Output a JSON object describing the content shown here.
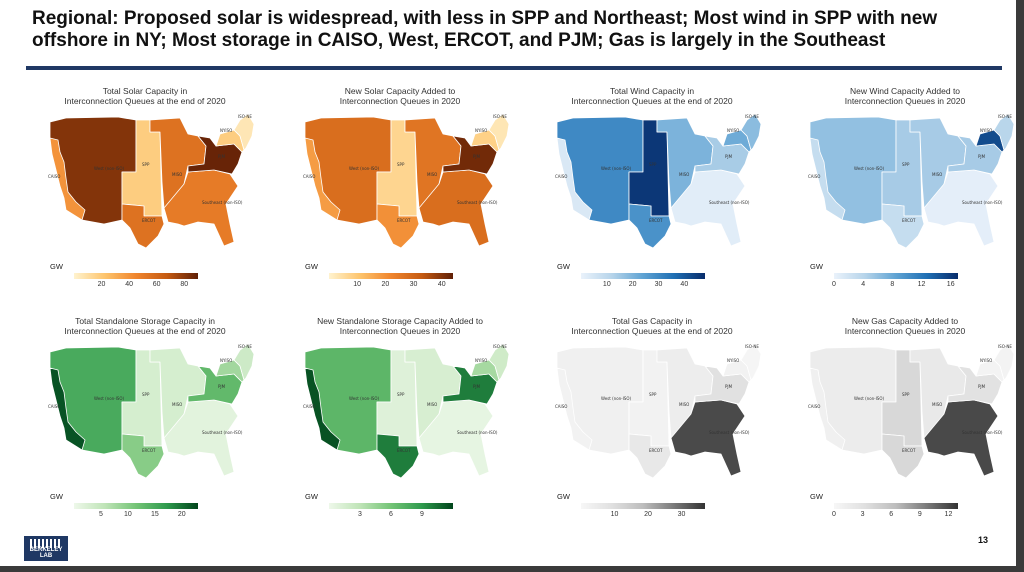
{
  "slide": {
    "title": "Regional: Proposed solar is widespread, with less in SPP and Northeast; Most wind in SPP with new offshore in NY; Most storage in CAISO, West, ERCOT, and PJM; Gas is largely in the Southeast",
    "page_number": "13",
    "logo_text": "BERKELEY LAB"
  },
  "maps": [
    {
      "title_line1": "Total Solar Capacity in",
      "title_line2": "Interconnection Queues at the end of 2020",
      "unit": "GW",
      "ramp": [
        "#fff3cf",
        "#fdc46c",
        "#f0852d",
        "#c55a11",
        "#5f1f06"
      ],
      "vmax": 90,
      "ticks": [
        "20",
        "40",
        "60",
        "80"
      ],
      "tick_values": [
        20,
        40,
        60,
        80
      ],
      "region_values": {
        "west": 82,
        "caiso": 40,
        "spp": 18,
        "miso": 55,
        "ercot": 55,
        "southeast": 50,
        "pjm": 88,
        "nyiso": 18,
        "isone": 6
      }
    },
    {
      "title_line1": "New Solar Capacity Added to",
      "title_line2": "Interconnection Queues in 2020",
      "unit": "GW",
      "ramp": [
        "#fff3cf",
        "#fdc46c",
        "#f0852d",
        "#c55a11",
        "#5f1f06"
      ],
      "vmax": 44,
      "ticks": [
        "10",
        "20",
        "30",
        "40"
      ],
      "tick_values": [
        10,
        20,
        30,
        40
      ],
      "region_values": {
        "west": 28,
        "caiso": 18,
        "spp": 7,
        "miso": 26,
        "ercot": 20,
        "southeast": 28,
        "pjm": 42,
        "nyiso": 8,
        "isone": 3
      }
    },
    {
      "title_line1": "Total Wind Capacity in",
      "title_line2": "Interconnection Queues at the end of 2020",
      "unit": "GW",
      "ramp": [
        "#eaf2fb",
        "#b6d4ea",
        "#5fa3d3",
        "#1f6fb4",
        "#082c6b"
      ],
      "vmax": 48,
      "ticks": [
        "10",
        "20",
        "30",
        "40"
      ],
      "tick_values": [
        10,
        20,
        30,
        40
      ],
      "region_values": {
        "west": 30,
        "caiso": 4,
        "spp": 46,
        "miso": 20,
        "ercot": 28,
        "southeast": 2,
        "pjm": 14,
        "nyiso": 22,
        "isone": 18
      }
    },
    {
      "title_line1": "New Wind Capacity Added to",
      "title_line2": "Interconnection Queues in 2020",
      "unit": "GW",
      "ramp": [
        "#eaf2fb",
        "#b6d4ea",
        "#5fa3d3",
        "#1f6fb4",
        "#082c6b"
      ],
      "vmax": 17,
      "ticks": [
        "0",
        "4",
        "8",
        "12",
        "16"
      ],
      "tick_values": [
        0,
        4,
        8,
        12,
        16
      ],
      "region_values": {
        "west": 6,
        "caiso": 3,
        "spp": 5,
        "miso": 5,
        "ercot": 3,
        "southeast": 0.5,
        "pjm": 5,
        "nyiso": 15,
        "isone": 4
      }
    },
    {
      "title_line1": "Total Standalone Storage Capacity in",
      "title_line2": "Interconnection Queues at the end of 2020",
      "unit": "GW",
      "ramp": [
        "#eef8ea",
        "#bfe4b7",
        "#74c476",
        "#2e9a4d",
        "#00441b"
      ],
      "vmax": 23,
      "ticks": [
        "5",
        "10",
        "15",
        "20"
      ],
      "tick_values": [
        5,
        10,
        15,
        20
      ],
      "region_values": {
        "west": 15,
        "caiso": 22,
        "spp": 3,
        "miso": 3,
        "ercot": 10,
        "southeast": 1.5,
        "pjm": 13,
        "nyiso": 8,
        "isone": 4
      }
    },
    {
      "title_line1": "New Standalone Storage Capacity Added to",
      "title_line2": "Interconnection Queues in 2020",
      "unit": "GW",
      "ramp": [
        "#eef8ea",
        "#bfe4b7",
        "#74c476",
        "#2e9a4d",
        "#00441b"
      ],
      "vmax": 12,
      "ticks": [
        "3",
        "6",
        "9"
      ],
      "tick_values": [
        3,
        6,
        9
      ],
      "region_values": {
        "west": 7,
        "caiso": 11.5,
        "spp": 1,
        "miso": 1.5,
        "ercot": 10,
        "southeast": 0.5,
        "pjm": 10,
        "nyiso": 4,
        "isone": 2
      }
    },
    {
      "title_line1": "Total Gas Capacity in",
      "title_line2": "Interconnection Queues at the end of 2020",
      "unit": "GW",
      "ramp": [
        "#f7f7f7",
        "#e0e0e0",
        "#bdbdbd",
        "#7a7a7a",
        "#333333"
      ],
      "vmax": 37,
      "ticks": [
        "10",
        "20",
        "30"
      ],
      "tick_values": [
        10,
        20,
        30
      ],
      "region_values": {
        "west": 3,
        "caiso": 2,
        "spp": 2,
        "miso": 4,
        "ercot": 6,
        "southeast": 34,
        "pjm": 9,
        "nyiso": 2,
        "isone": 1
      }
    },
    {
      "title_line1": "New Gas Capacity Added to",
      "title_line2": "Interconnection Queues in 2020",
      "unit": "GW",
      "ramp": [
        "#f7f7f7",
        "#e0e0e0",
        "#bdbdbd",
        "#7a7a7a",
        "#333333"
      ],
      "vmax": 13,
      "ticks": [
        "0",
        "3",
        "6",
        "9",
        "12"
      ],
      "tick_values": [
        0,
        3,
        6,
        9,
        12
      ],
      "region_values": {
        "west": 1.5,
        "caiso": 1,
        "spp": 4,
        "miso": 2,
        "ercot": 4,
        "southeast": 12,
        "pjm": 3,
        "nyiso": 0.5,
        "isone": 0.5
      }
    }
  ],
  "region_labels": {
    "west": "West (non-ISO)",
    "caiso": "CAISO",
    "spp": "SPP",
    "miso": "MISO",
    "ercot": "ERCOT",
    "southeast": "Southeast (non-ISO)",
    "pjm": "PJM",
    "nyiso": "NYISO",
    "isone": "ISO-NE"
  }
}
